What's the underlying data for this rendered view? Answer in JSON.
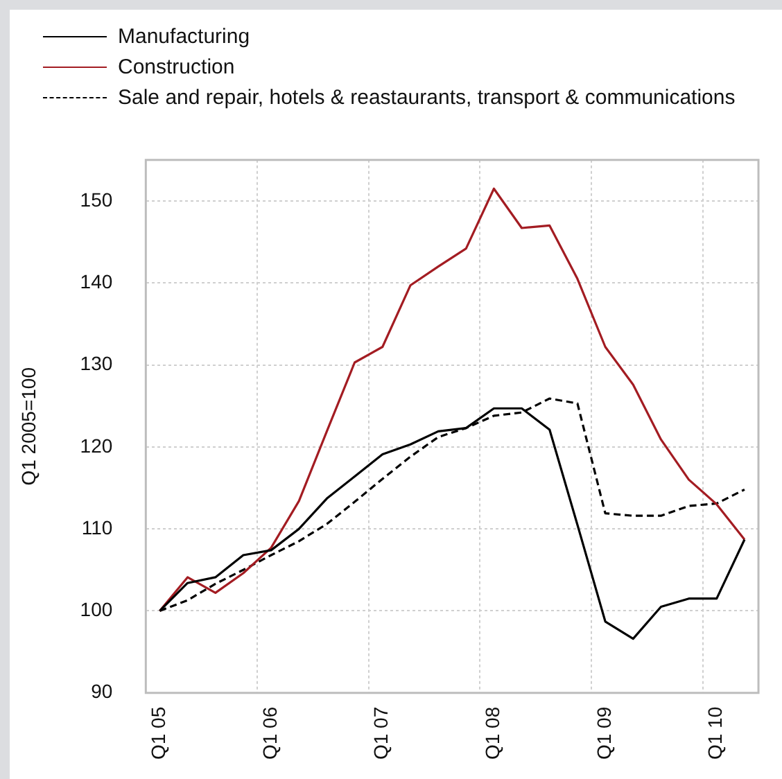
{
  "chart_data": {
    "type": "line",
    "ylabel": "Q1 2005=100",
    "categories": [
      "Q1 05",
      null,
      null,
      null,
      "Q1 06",
      null,
      null,
      null,
      "Q1 07",
      null,
      null,
      null,
      "Q1 08",
      null,
      null,
      null,
      "Q1 09",
      null,
      null,
      null,
      "Q1 10",
      null
    ],
    "series": [
      {
        "name": "Manufacturing",
        "color": "#000000",
        "line_style": "solid",
        "values": [
          100,
          103.4,
          104.1,
          106.8,
          107.4,
          110.0,
          113.7,
          116.4,
          119.1,
          120.3,
          121.9,
          122.3,
          124.7,
          124.7,
          122.1,
          110.5,
          98.7,
          96.6,
          100.5,
          101.5,
          101.5,
          108.7
        ]
      },
      {
        "name": "Construction",
        "color": "#a31c22",
        "line_style": "solid",
        "values": [
          100,
          104.1,
          102.2,
          104.6,
          107.7,
          113.4,
          121.9,
          130.3,
          132.2,
          139.7,
          142.0,
          144.2,
          151.5,
          146.7,
          147.0,
          140.5,
          132.2,
          127.6,
          120.9,
          116.0,
          113.0,
          108.7
        ]
      },
      {
        "name": "Sale and repair, hotels & reastaurants, transport & communications",
        "color": "#000000",
        "line_style": "dashed",
        "values": [
          100,
          101.3,
          103.3,
          105.0,
          106.8,
          108.5,
          110.6,
          113.3,
          116.1,
          118.8,
          121.2,
          122.3,
          123.8,
          124.2,
          125.9,
          125.3,
          111.9,
          111.6,
          111.6,
          112.8,
          113.1,
          114.8
        ]
      }
    ],
    "ylim": [
      90,
      155
    ],
    "yticks": [
      90,
      100,
      110,
      120,
      130,
      140,
      150
    ],
    "grid": true,
    "legend": "top left",
    "marker": "none"
  }
}
